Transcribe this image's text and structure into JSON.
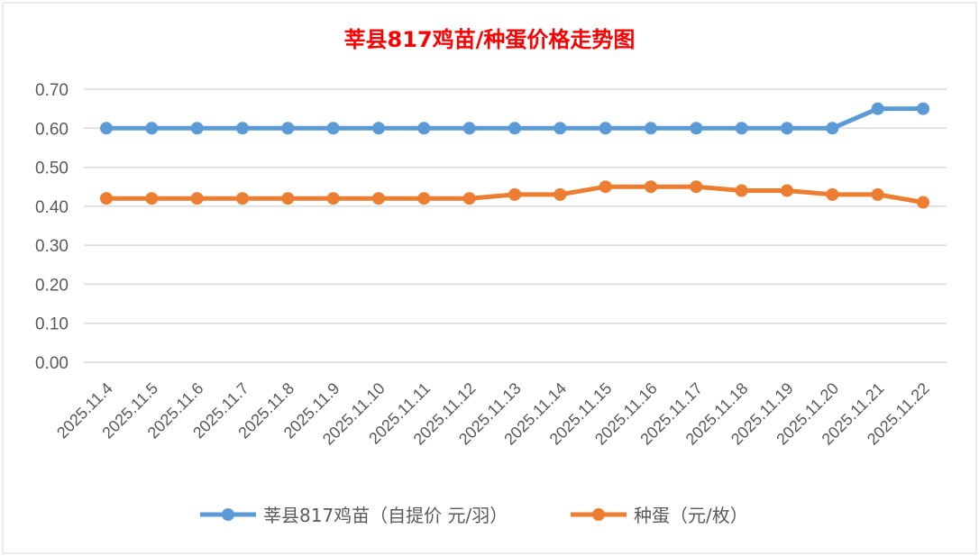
{
  "chart_data": {
    "type": "line",
    "title": "莘县817鸡苗/种蛋价格走势图",
    "xlabel": "",
    "ylabel": "",
    "ylim": [
      0,
      0.7
    ],
    "yticks": [
      "0.00",
      "0.10",
      "0.20",
      "0.30",
      "0.40",
      "0.50",
      "0.60",
      "0.70"
    ],
    "grid": true,
    "legend_position": "bottom",
    "categories": [
      "2025.11.4",
      "2025.11.5",
      "2025.11.6",
      "2025.11.7",
      "2025.11.8",
      "2025.11.9",
      "2025.11.10",
      "2025.11.11",
      "2025.11.12",
      "2025.11.13",
      "2025.11.14",
      "2025.11.15",
      "2025.11.16",
      "2025.11.17",
      "2025.11.18",
      "2025.11.19",
      "2025.11.20",
      "2025.11.21",
      "2025.11.22"
    ],
    "series": [
      {
        "name": "莘县817鸡苗（自提价 元/羽）",
        "color": "#5b9bd5",
        "values": [
          0.6,
          0.6,
          0.6,
          0.6,
          0.6,
          0.6,
          0.6,
          0.6,
          0.6,
          0.6,
          0.6,
          0.6,
          0.6,
          0.6,
          0.6,
          0.6,
          0.6,
          0.65,
          0.65
        ]
      },
      {
        "name": "种蛋（元/枚）",
        "color": "#ed7d31",
        "values": [
          0.42,
          0.42,
          0.42,
          0.42,
          0.42,
          0.42,
          0.42,
          0.42,
          0.42,
          0.43,
          0.43,
          0.45,
          0.45,
          0.45,
          0.44,
          0.44,
          0.43,
          0.43,
          0.41
        ]
      }
    ]
  }
}
